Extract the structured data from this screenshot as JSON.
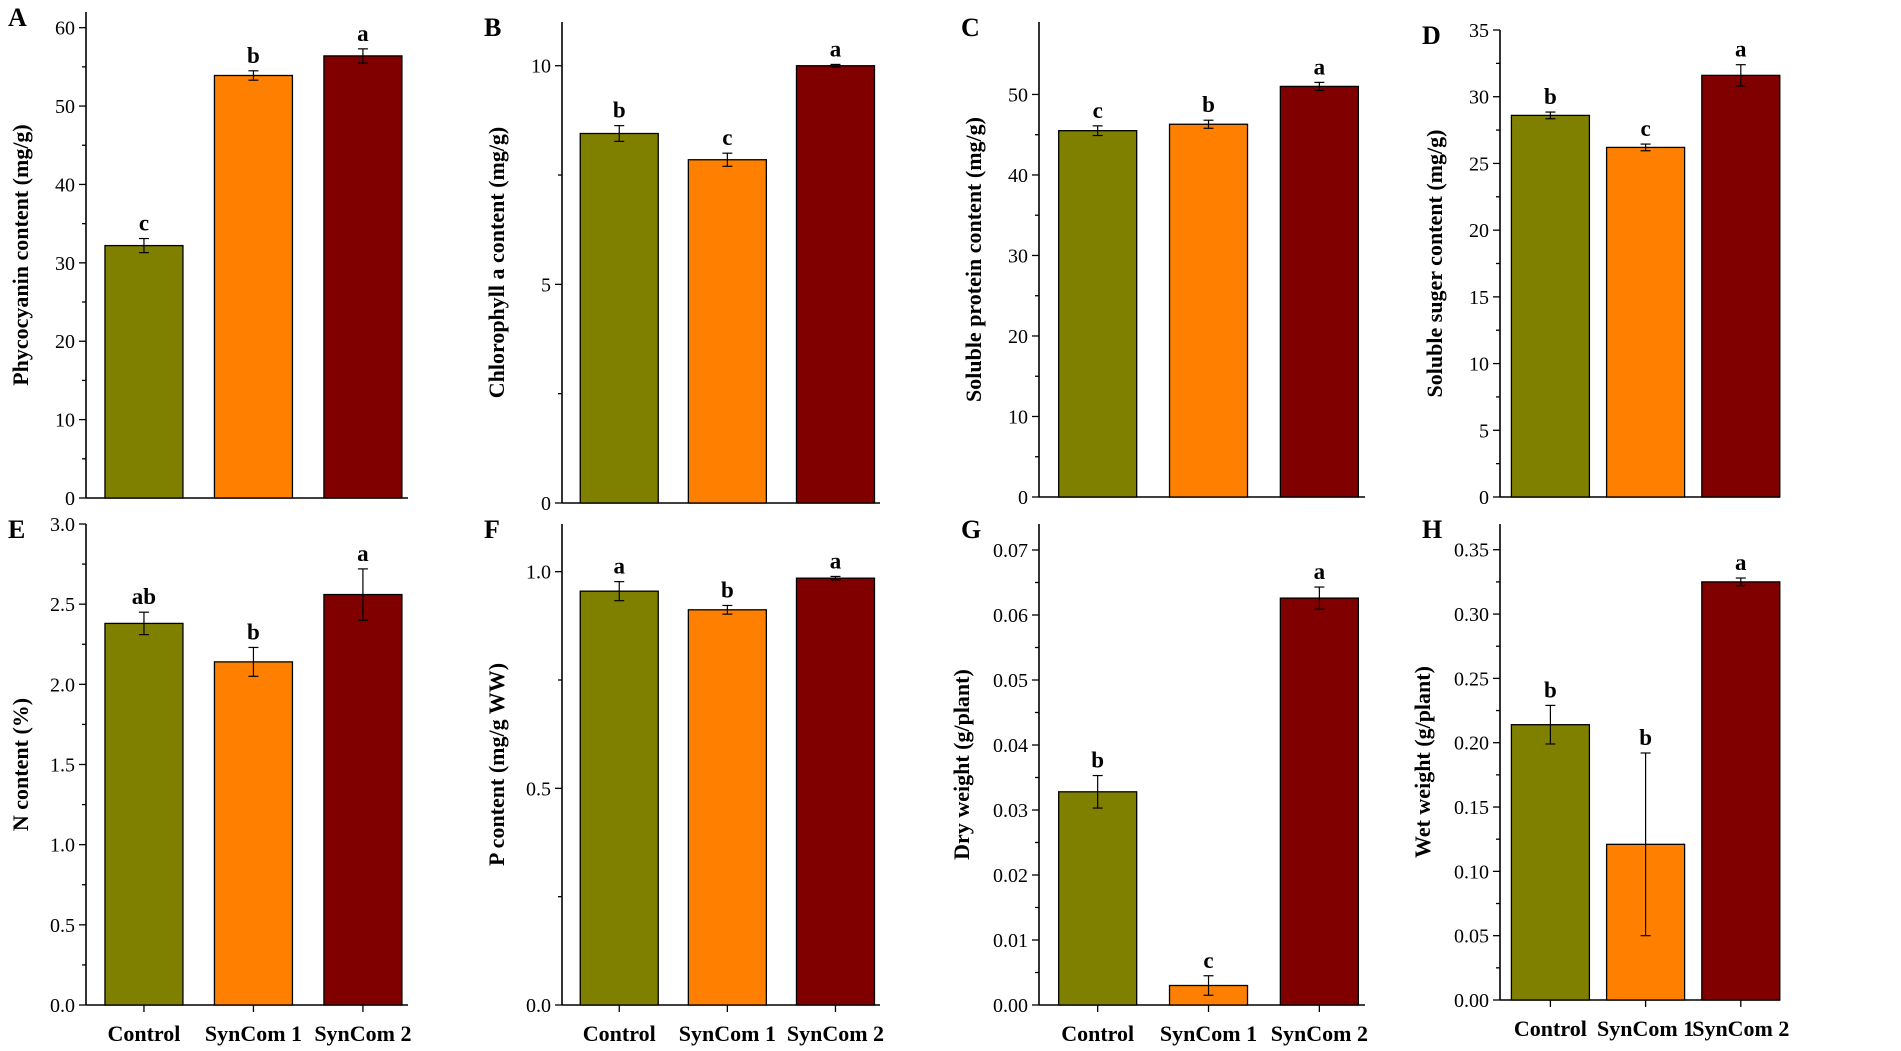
{
  "figure": {
    "colors": {
      "control": "#808000",
      "syncom1": "#FF8000",
      "syncom2": "#800000"
    }
  },
  "chart_data": [
    {
      "panel": "A",
      "type": "bar",
      "categories": [
        "Control",
        "SynCom 1",
        "SynCom 2"
      ],
      "values": [
        32.2,
        53.9,
        56.4
      ],
      "errors": [
        0.9,
        0.6,
        0.9
      ],
      "significance": [
        "c",
        "b",
        "a"
      ],
      "ylabel": "Phycocyanin content (mg/g)",
      "ylim": [
        0,
        62
      ],
      "yticks": [
        0,
        10,
        20,
        30,
        40,
        50,
        60
      ],
      "yticklabels": [
        "0",
        "10",
        "20",
        "30",
        "40",
        "50",
        "60"
      ]
    },
    {
      "panel": "B",
      "type": "bar",
      "categories": [
        "Control",
        "SynCom 1",
        "SynCom 2"
      ],
      "values": [
        8.45,
        7.85,
        10.0
      ],
      "errors": [
        0.18,
        0.15,
        0.03
      ],
      "significance": [
        "b",
        "c",
        "a"
      ],
      "ylabel": "Chlorophyll a content (mg/g)",
      "ylim": [
        0,
        11
      ],
      "yticks": [
        0,
        5,
        10
      ],
      "yticklabels": [
        "0",
        "5",
        "10"
      ]
    },
    {
      "panel": "C",
      "type": "bar",
      "categories": [
        "Control",
        "SynCom 1",
        "SynCom 2"
      ],
      "values": [
        45.5,
        46.3,
        51.0
      ],
      "errors": [
        0.6,
        0.5,
        0.5
      ],
      "significance": [
        "c",
        "b",
        "a"
      ],
      "ylabel": "Soluble protein content (mg/g)",
      "ylim": [
        0,
        59
      ],
      "yticks": [
        0,
        10,
        20,
        30,
        40,
        50
      ],
      "yticklabels": [
        "0",
        "10",
        "20",
        "30",
        "40",
        "50"
      ]
    },
    {
      "panel": "D",
      "type": "bar",
      "categories": [
        "Control",
        "SynCom 1",
        "SynCom 2"
      ],
      "values": [
        28.6,
        26.2,
        31.6
      ],
      "errors": [
        0.25,
        0.25,
        0.8
      ],
      "significance": [
        "b",
        "c",
        "a"
      ],
      "ylabel": "Soluble suger content (mg/g)",
      "ylim": [
        0,
        35
      ],
      "yticks": [
        0,
        5,
        10,
        15,
        20,
        25,
        30,
        35
      ],
      "yticklabels": [
        "0",
        "5",
        "10",
        "15",
        "20",
        "25",
        "30",
        "35"
      ]
    },
    {
      "panel": "E",
      "type": "bar",
      "categories": [
        "Control",
        "SynCom 1",
        "SynCom 2"
      ],
      "values": [
        2.38,
        2.14,
        2.56
      ],
      "errors": [
        0.07,
        0.09,
        0.16
      ],
      "significance": [
        "ab",
        "b",
        "a"
      ],
      "ylabel": "N content (%)",
      "ylim": [
        0,
        3.0
      ],
      "yticks": [
        0,
        0.5,
        1.0,
        1.5,
        2.0,
        2.5,
        3.0
      ],
      "yticklabels": [
        "0.0",
        "0.5",
        "1.0",
        "1.5",
        "2.0",
        "2.5",
        "3.0"
      ]
    },
    {
      "panel": "F",
      "type": "bar",
      "categories": [
        "Control",
        "SynCom 1",
        "SynCom 2"
      ],
      "values": [
        0.955,
        0.912,
        0.985
      ],
      "errors": [
        0.022,
        0.01,
        0.004
      ],
      "significance": [
        "a",
        "b",
        "a"
      ],
      "ylabel": "P content (mg/g WW)",
      "ylim": [
        0,
        1.11
      ],
      "yticks": [
        0,
        0.5,
        1.0
      ],
      "yticklabels": [
        "0.0",
        "0.5",
        "1.0"
      ]
    },
    {
      "panel": "G",
      "type": "bar",
      "categories": [
        "Control",
        "SynCom 1",
        "SynCom 2"
      ],
      "values": [
        0.0328,
        0.003,
        0.0626
      ],
      "errors": [
        0.0025,
        0.0015,
        0.0017
      ],
      "significance": [
        "b",
        "c",
        "a"
      ],
      "ylabel": "Dry weight (g/plant)",
      "ylim": [
        0,
        0.074
      ],
      "yticks": [
        0,
        0.01,
        0.02,
        0.03,
        0.04,
        0.05,
        0.06,
        0.07
      ],
      "yticklabels": [
        "0.00",
        "0.01",
        "0.02",
        "0.03",
        "0.04",
        "0.05",
        "0.06",
        "0.07"
      ]
    },
    {
      "panel": "H",
      "type": "bar",
      "categories": [
        "Control",
        "SynCom 1",
        "SynCom 2"
      ],
      "values": [
        0.214,
        0.121,
        0.325
      ],
      "errors": [
        0.015,
        0.071,
        0.003
      ],
      "significance": [
        "b",
        "b",
        "a"
      ],
      "ylabel": "Wet weight (g/plant)",
      "ylim": [
        0,
        0.37
      ],
      "yticks": [
        0,
        0.05,
        0.1,
        0.15,
        0.2,
        0.25,
        0.3,
        0.35
      ],
      "yticklabels": [
        "0.00",
        "0.05",
        "0.10",
        "0.15",
        "0.20",
        "0.25",
        "0.30",
        "0.35"
      ]
    }
  ]
}
